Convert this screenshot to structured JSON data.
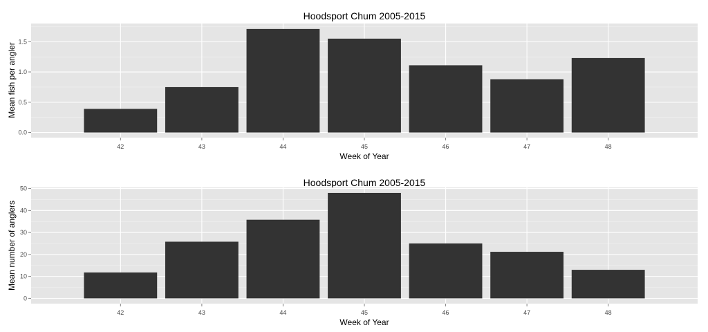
{
  "chart_data": [
    {
      "type": "bar",
      "title": "Hoodsport Chum 2005-2015",
      "xlabel": "Week of Year",
      "ylabel": "Mean fish per angler",
      "categories": [
        "42",
        "43",
        "44",
        "45",
        "46",
        "47",
        "48"
      ],
      "values": [
        0.39,
        0.75,
        1.71,
        1.55,
        1.11,
        0.88,
        1.23
      ],
      "ylim": [
        -0.085,
        1.8
      ],
      "yticks": [
        "0.0",
        "0.5",
        "1.0",
        "1.5"
      ],
      "grid": true,
      "colors": {
        "bar": "#333333",
        "panel": "#e5e5e5",
        "grid": "#ffffff"
      }
    },
    {
      "type": "bar",
      "title": "Hoodsport Chum 2005-2015",
      "xlabel": "Week of Year",
      "ylabel": "Mean number of anglers",
      "categories": [
        "42",
        "43",
        "44",
        "45",
        "46",
        "47",
        "48"
      ],
      "values": [
        11.8,
        25.8,
        35.8,
        48.0,
        25.0,
        21.2,
        13.0
      ],
      "ylim": [
        -2.4,
        50.5
      ],
      "yticks": [
        "0",
        "10",
        "20",
        "30",
        "40",
        "50"
      ],
      "grid": true,
      "colors": {
        "bar": "#333333",
        "panel": "#e5e5e5",
        "grid": "#ffffff"
      }
    }
  ]
}
